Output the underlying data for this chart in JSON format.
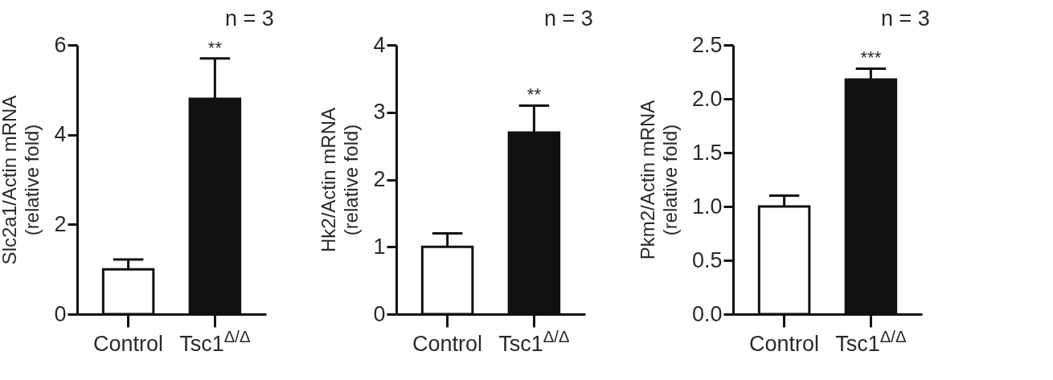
{
  "chart_data": [
    {
      "type": "bar",
      "ylabel": "Slc2a1/Actin mRNA\n(relative fold)",
      "categories": [
        "Control",
        "Tsc1$^{Δ/Δ}$"
      ],
      "values": [
        1.0,
        4.8
      ],
      "colors": [
        "#ffffff",
        "#111111"
      ],
      "errors": [
        [
          1.0,
          1.22
        ],
        [
          4.8,
          5.7
        ]
      ],
      "ylim": [
        0,
        6
      ],
      "yticks": [
        0,
        2,
        4,
        6
      ],
      "annotations": [
        "n = 3",
        {
          "text": "**",
          "x": "Tsc1$^{Δ/Δ}$",
          "y": 5.7
        }
      ]
    },
    {
      "type": "bar",
      "ylabel": "Hk2/Actin mRNA\n(relative fold)",
      "categories": [
        "Control",
        "Tsc1$^{Δ/Δ}$"
      ],
      "values": [
        1.0,
        2.7
      ],
      "colors": [
        "#ffffff",
        "#111111"
      ],
      "errors": [
        [
          1.0,
          1.2
        ],
        [
          2.7,
          3.1
        ]
      ],
      "ylim": [
        0,
        4
      ],
      "yticks": [
        0,
        1,
        2,
        3,
        4
      ],
      "annotations": [
        "n = 3",
        {
          "text": "**",
          "x": "Tsc1$^{Δ/Δ}$",
          "y": 3.1
        }
      ]
    },
    {
      "type": "bar",
      "ylabel": "Pkm2/Actin mRNA\n(relative fold)",
      "categories": [
        "Control",
        "Tsc1$^{Δ/Δ}$"
      ],
      "values": [
        1.0,
        2.18
      ],
      "colors": [
        "#ffffff",
        "#111111"
      ],
      "errors": [
        [
          1.0,
          1.1
        ],
        [
          2.18,
          2.28
        ]
      ],
      "ylim": [
        0,
        2.5
      ],
      "yticks": [
        {
          "value": 0,
          "label": "0.0"
        },
        0.5,
        {
          "value": 1,
          "label": "1.0"
        },
        1.5,
        {
          "value": 2,
          "label": "2.0"
        },
        2.5
      ],
      "annotations": [
        "n = 3",
        {
          "text": "***",
          "x": "Tsc1$^{Δ/Δ}$",
          "y": 2.28
        }
      ]
    }
  ]
}
